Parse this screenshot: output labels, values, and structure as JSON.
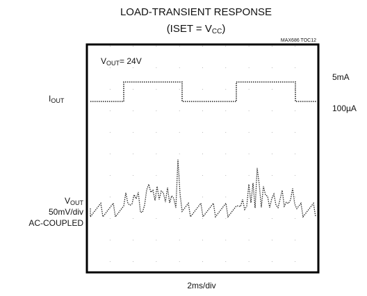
{
  "title": "LOAD-TRANSIENT RESPONSE",
  "subtitle": {
    "before": "(ISET = V",
    "sub": "CC",
    "after": ")"
  },
  "code": "MAX686 TOC12",
  "annotation": {
    "before": "V",
    "sub": "OUT",
    "after": "= 24V"
  },
  "left_labels": {
    "iout": {
      "before": "I",
      "sub": "OUT"
    },
    "vout": {
      "before": "V",
      "sub": "OUT"
    },
    "scale": "50mV/div",
    "coupling": "AC-COUPLED"
  },
  "right_labels": [
    "5mA",
    "100µA"
  ],
  "x_label": "2ms/div"
}
